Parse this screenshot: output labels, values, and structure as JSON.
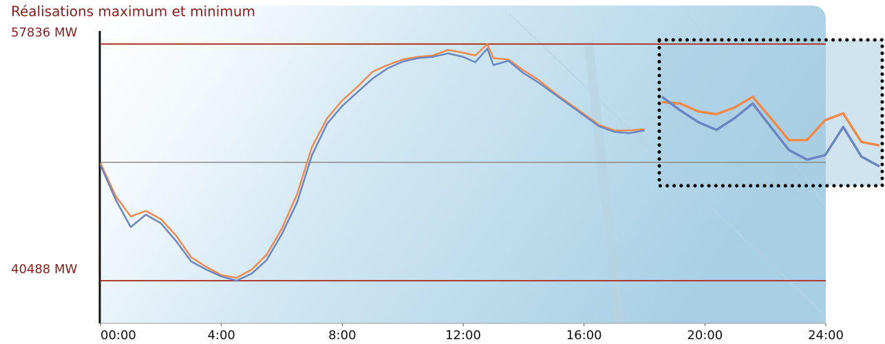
{
  "chart_data": [
    {
      "type": "line",
      "title": "Réalisations maximum et minimum",
      "x": [
        0,
        0.5,
        1,
        1.5,
        2,
        2.5,
        3,
        3.5,
        4,
        4.5,
        5,
        5.5,
        6,
        6.5,
        7,
        7.5,
        8,
        8.5,
        9,
        9.5,
        10,
        10.5,
        11,
        11.5,
        12,
        12.4,
        12.8,
        13,
        13.5,
        14,
        14.5,
        15,
        15.5,
        16,
        16.5,
        17,
        17.5,
        18
      ],
      "series": [
        {
          "color": "#f08a4b",
          "values": [
            49100,
            46700,
            45200,
            45600,
            45000,
            43800,
            42200,
            41500,
            40900,
            40700,
            41300,
            42400,
            44300,
            46800,
            50300,
            52400,
            53700,
            54700,
            55800,
            56300,
            56700,
            56900,
            57000,
            57400,
            57200,
            57000,
            57836,
            56800,
            56700,
            55900,
            55200,
            54300,
            53500,
            52700,
            51900,
            51500,
            51500,
            51600
          ]
        },
        {
          "color": "#6a86c2",
          "values": [
            48960,
            46440,
            44420,
            45330,
            44700,
            43400,
            41900,
            41300,
            40800,
            40488,
            41000,
            42000,
            43900,
            46200,
            49700,
            52000,
            53300,
            54300,
            55300,
            56050,
            56550,
            56800,
            56900,
            57150,
            56900,
            56500,
            57500,
            56300,
            56600,
            55700,
            55000,
            54200,
            53400,
            52600,
            51800,
            51400,
            51300,
            51500
          ]
        }
      ],
      "xlim": [
        0,
        24
      ],
      "xticks": [
        {
          "value": 0,
          "label": "00:00"
        },
        {
          "value": 4,
          "label": "4:00"
        },
        {
          "value": 8,
          "label": "8:00"
        },
        {
          "value": 12,
          "label": "12:00"
        },
        {
          "value": 16,
          "label": "16:00"
        },
        {
          "value": 20,
          "label": "20:00"
        },
        {
          "value": 24,
          "label": "24:00"
        }
      ],
      "ylim": [
        37361,
        58794
      ],
      "yticks": [
        {
          "value": 57836,
          "label": "57836 MW"
        },
        {
          "value": 40488,
          "label": "40488 MW"
        }
      ]
    },
    {
      "type": "line",
      "x": [
        18,
        18.5,
        19,
        19.5,
        20,
        20.5,
        21,
        21.5,
        22,
        22.5,
        23,
        23.5,
        24
      ],
      "series": [
        {
          "color": "#f08a4b",
          "values": [
            50880,
            50830,
            50550,
            50450,
            50690,
            51070,
            50310,
            49530,
            49530,
            50240,
            50480,
            49460,
            49340
          ]
        },
        {
          "color": "#6a86c2",
          "values": [
            51070,
            50590,
            50170,
            49890,
            50310,
            50830,
            50000,
            49180,
            48830,
            48990,
            50000,
            48940,
            48590
          ]
        }
      ],
      "xlim": [
        18,
        24
      ],
      "ylim": [
        48000,
        53000
      ]
    }
  ]
}
